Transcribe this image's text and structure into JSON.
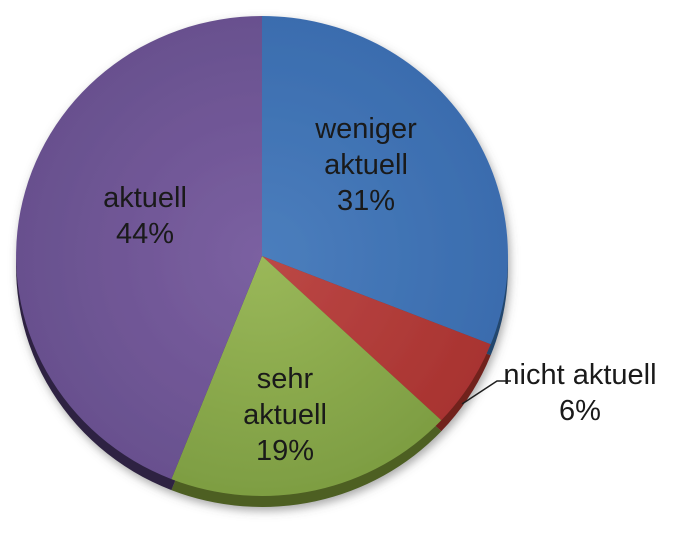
{
  "chart_data": {
    "type": "pie",
    "title": "",
    "style": "3d-pie-with-depth-rim-and-shadow",
    "direction": "clockwise",
    "start_angle_deg": 0,
    "legend": "none",
    "background": "#ffffff",
    "text_color": "#1a1a1a",
    "leader_line_color": "#1f1f1f",
    "slices": [
      {
        "name": "weniger aktuell",
        "value": 31,
        "pct_text": "31%",
        "label_position": "inside",
        "display_lines": [
          "weniger",
          "aktuell",
          "31%"
        ],
        "color": "#4b7ebd",
        "color_edge": "#3a6cae",
        "color_depth": "#24466e"
      },
      {
        "name": "nicht aktuell",
        "value": 6,
        "pct_text": "6%",
        "label_position": "outside-right-with-leader-line",
        "display_lines": [
          "nicht aktuell",
          "6%"
        ],
        "color": "#bc4846",
        "color_edge": "#a83330",
        "color_depth": "#71201f"
      },
      {
        "name": "sehr aktuell",
        "value": 19,
        "pct_text": "19%",
        "label_position": "inside",
        "display_lines": [
          "sehr",
          "aktuell",
          "19%"
        ],
        "color": "#9ab859",
        "color_edge": "#7d9d42",
        "color_depth": "#4d5e22"
      },
      {
        "name": "aktuell",
        "value": 44,
        "pct_text": "44%",
        "label_position": "inside",
        "display_lines": [
          "aktuell",
          "44%"
        ],
        "color": "#7b60a1",
        "color_edge": "#68508e",
        "color_depth": "#2d2142"
      }
    ]
  }
}
